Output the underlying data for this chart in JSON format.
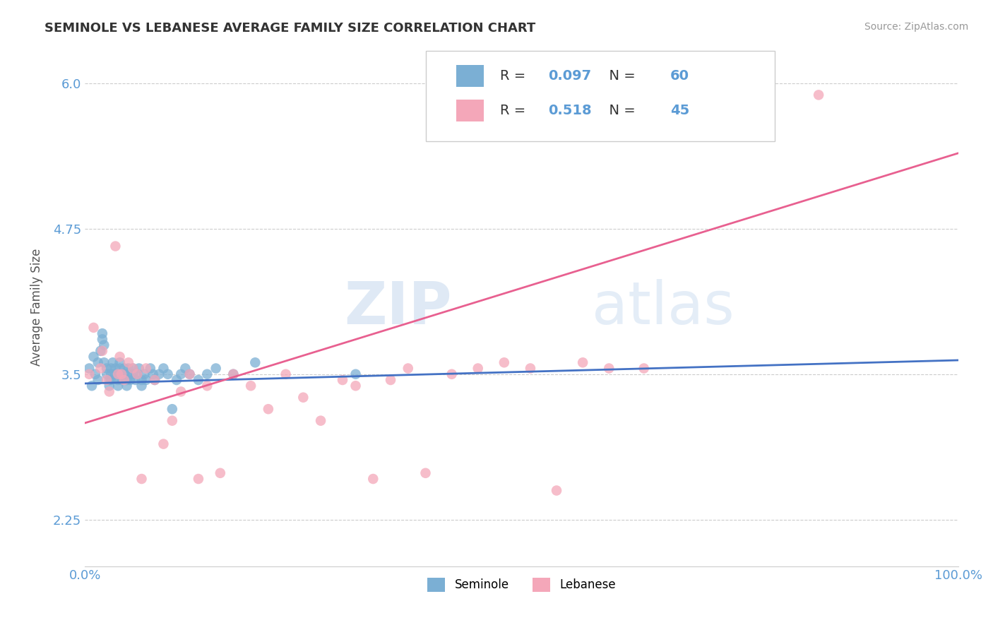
{
  "title": "SEMINOLE VS LEBANESE AVERAGE FAMILY SIZE CORRELATION CHART",
  "source_text": "Source: ZipAtlas.com",
  "ylabel": "Average Family Size",
  "xlim": [
    0,
    1
  ],
  "ylim": [
    1.85,
    6.3
  ],
  "yticks": [
    2.25,
    3.5,
    4.75,
    6.0
  ],
  "xtick_labels": [
    "0.0%",
    "100.0%"
  ],
  "ytick_color": "#5b9bd5",
  "xtick_color": "#5b9bd5",
  "seminole_color": "#7bafd4",
  "lebanese_color": "#f4a7b9",
  "trend_seminole_color": "#4472c4",
  "trend_lebanese_color": "#e86090",
  "R_seminole": 0.097,
  "N_seminole": 60,
  "R_lebanese": 0.518,
  "N_lebanese": 45,
  "grid_color": "#cccccc",
  "background_color": "#ffffff",
  "legend_text_color": "#5b9bd5",
  "legend_label_color": "#333333",
  "seminole_x": [
    0.005,
    0.008,
    0.01,
    0.012,
    0.015,
    0.015,
    0.018,
    0.02,
    0.02,
    0.022,
    0.022,
    0.025,
    0.025,
    0.028,
    0.028,
    0.03,
    0.03,
    0.03,
    0.032,
    0.035,
    0.035,
    0.038,
    0.038,
    0.04,
    0.04,
    0.042,
    0.042,
    0.045,
    0.045,
    0.048,
    0.048,
    0.05,
    0.05,
    0.052,
    0.055,
    0.055,
    0.058,
    0.06,
    0.062,
    0.065,
    0.065,
    0.068,
    0.07,
    0.075,
    0.078,
    0.08,
    0.085,
    0.09,
    0.095,
    0.1,
    0.105,
    0.11,
    0.115,
    0.12,
    0.13,
    0.14,
    0.15,
    0.17,
    0.195,
    0.31
  ],
  "seminole_y": [
    3.55,
    3.4,
    3.65,
    3.5,
    3.45,
    3.6,
    3.7,
    3.8,
    3.85,
    3.75,
    3.6,
    3.55,
    3.5,
    3.45,
    3.4,
    3.55,
    3.5,
    3.45,
    3.6,
    3.55,
    3.5,
    3.45,
    3.4,
    3.55,
    3.6,
    3.5,
    3.45,
    3.55,
    3.5,
    3.45,
    3.4,
    3.55,
    3.5,
    3.45,
    3.55,
    3.5,
    3.45,
    3.5,
    3.55,
    3.45,
    3.4,
    3.5,
    3.45,
    3.55,
    3.5,
    3.45,
    3.5,
    3.55,
    3.5,
    3.2,
    3.45,
    3.5,
    3.55,
    3.5,
    3.45,
    3.5,
    3.55,
    3.5,
    3.6,
    3.5
  ],
  "lebanese_x": [
    0.005,
    0.01,
    0.018,
    0.02,
    0.025,
    0.028,
    0.035,
    0.038,
    0.04,
    0.042,
    0.045,
    0.05,
    0.055,
    0.06,
    0.065,
    0.07,
    0.08,
    0.09,
    0.1,
    0.11,
    0.12,
    0.13,
    0.14,
    0.155,
    0.17,
    0.19,
    0.21,
    0.23,
    0.25,
    0.27,
    0.295,
    0.31,
    0.33,
    0.35,
    0.37,
    0.39,
    0.42,
    0.45,
    0.48,
    0.51,
    0.54,
    0.57,
    0.6,
    0.64,
    0.84
  ],
  "lebanese_y": [
    3.5,
    3.9,
    3.55,
    3.7,
    3.45,
    3.35,
    4.6,
    3.5,
    3.65,
    3.5,
    3.45,
    3.6,
    3.55,
    3.5,
    2.6,
    3.55,
    3.45,
    2.9,
    3.1,
    3.35,
    3.5,
    2.6,
    3.4,
    2.65,
    3.5,
    3.4,
    3.2,
    3.5,
    3.3,
    3.1,
    3.45,
    3.4,
    2.6,
    3.45,
    3.55,
    2.65,
    3.5,
    3.55,
    3.6,
    3.55,
    2.5,
    3.6,
    3.55,
    3.55,
    5.9
  ],
  "trend_sem_x0": 0.0,
  "trend_sem_x1": 1.0,
  "trend_sem_y0": 3.42,
  "trend_sem_y1": 3.62,
  "trend_leb_x0": 0.0,
  "trend_leb_x1": 1.0,
  "trend_leb_y0": 3.08,
  "trend_leb_y1": 5.4
}
